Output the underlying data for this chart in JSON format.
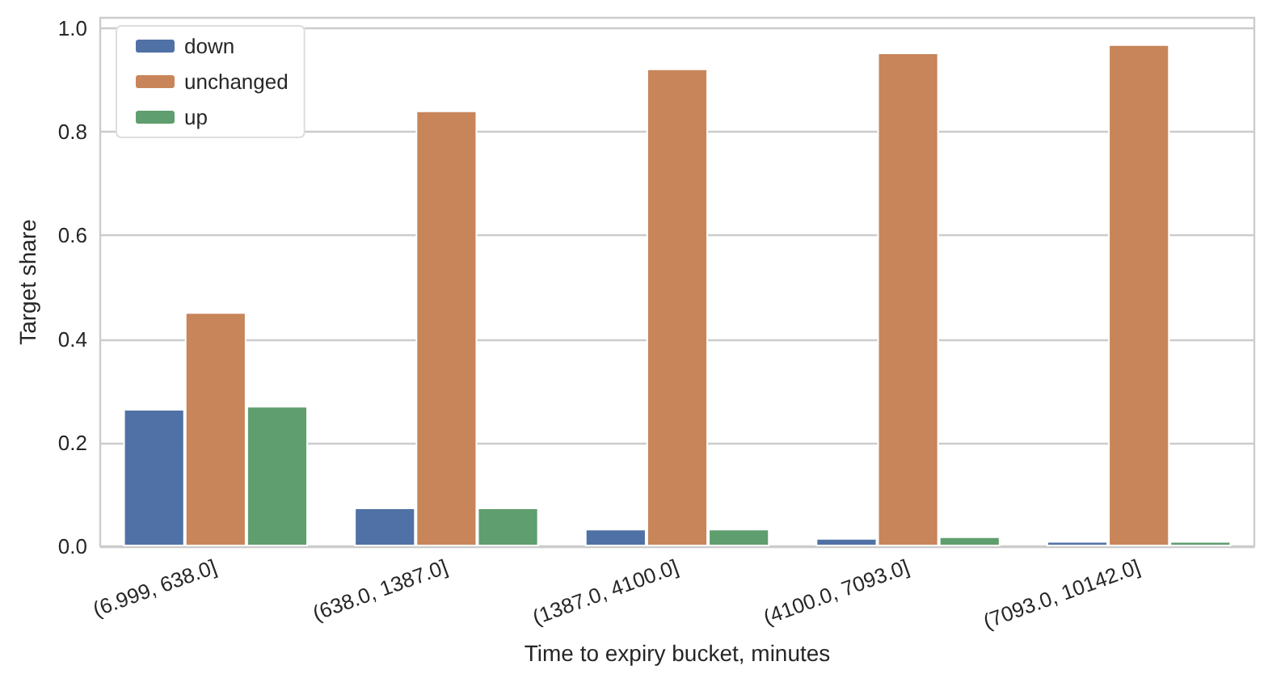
{
  "chart_data": {
    "type": "bar",
    "xlabel": "Time to expiry bucket, minutes",
    "ylabel": "Target share",
    "categories": [
      "(6.999, 638.0]",
      "(638.0, 1387.0]",
      "(1387.0, 4100.0]",
      "(4100.0, 7093.0]",
      "(7093.0, 10142.0]"
    ],
    "series": [
      {
        "name": "down",
        "color": "#5071a5",
        "values": [
          0.265,
          0.075,
          0.034,
          0.016,
          0.01
        ]
      },
      {
        "name": "unchanged",
        "color": "#c8855a",
        "values": [
          0.452,
          0.841,
          0.922,
          0.953,
          0.969
        ]
      },
      {
        "name": "up",
        "color": "#5f9e6e",
        "values": [
          0.271,
          0.075,
          0.034,
          0.019,
          0.01
        ]
      }
    ],
    "ylim": [
      0,
      1.02
    ],
    "yticks": [
      {
        "value": 0,
        "label": "0.0"
      },
      {
        "value": 0.2,
        "label": "0.2"
      },
      {
        "value": 0.4,
        "label": "0.4"
      },
      {
        "value": 0.6,
        "label": "0.6"
      },
      {
        "value": 0.8,
        "label": "0.8"
      },
      {
        "value": 1,
        "label": "1.0"
      }
    ],
    "grid": "y",
    "legend": "top left"
  }
}
